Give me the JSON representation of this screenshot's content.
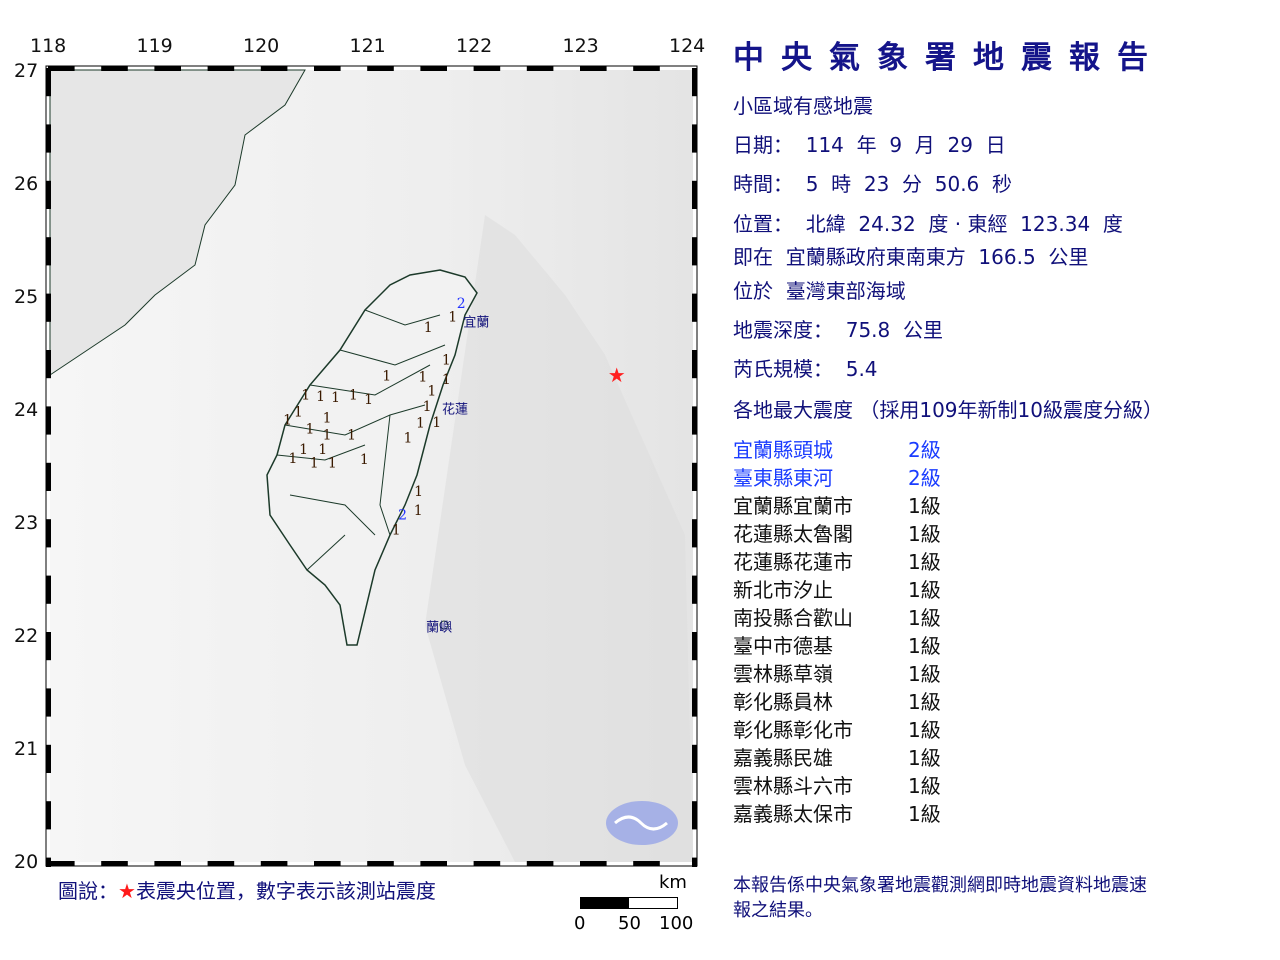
{
  "header": {
    "title": "中央氣象署地震報告"
  },
  "report": {
    "type": "小區域有感地震",
    "date": "日期：  114  年  9  月  29  日",
    "time": "時間：  5  時  23  分  50.6  秒",
    "location": "位置：  北緯  24.32  度 · 東經  123.34  度",
    "relative": "即在  宜蘭縣政府東南東方  166.5  公里",
    "region": "位於  臺灣東部海域",
    "depth": "地震深度：  75.8  公里",
    "magnitude": "芮氏規模：  5.4",
    "intensity_heading": "各地最大震度 （採用109年新制10級震度分級）"
  },
  "stations": [
    {
      "name": "宜蘭縣頭城",
      "level": "2級"
    },
    {
      "name": "臺東縣東河",
      "level": "2級"
    },
    {
      "name": "宜蘭縣宜蘭市",
      "level": "1級"
    },
    {
      "name": "花蓮縣太魯閣",
      "level": "1級"
    },
    {
      "name": "花蓮縣花蓮市",
      "level": "1級"
    },
    {
      "name": "新北市汐止",
      "level": "1級"
    },
    {
      "name": "南投縣合歡山",
      "level": "1級"
    },
    {
      "name": "臺中市德基",
      "level": "1級"
    },
    {
      "name": "雲林縣草嶺",
      "level": "1級"
    },
    {
      "name": "彰化縣員林",
      "level": "1級"
    },
    {
      "name": "彰化縣彰化市",
      "level": "1級"
    },
    {
      "name": "嘉義縣民雄",
      "level": "1級"
    },
    {
      "name": "雲林縣斗六市",
      "level": "1級"
    },
    {
      "name": "嘉義縣太保市",
      "level": "1級"
    }
  ],
  "map": {
    "lon_ticks": [
      "118",
      "119",
      "120",
      "121",
      "122",
      "123",
      "124"
    ],
    "lat_ticks": [
      "27",
      "26",
      "25",
      "24",
      "23",
      "22",
      "21",
      "20"
    ],
    "epicenter": {
      "lon": 123.34,
      "lat": 24.32,
      "color": "#ff2020"
    },
    "place_labels": [
      {
        "text": "宜蘭",
        "lon": 121.9,
        "lat": 24.75
      },
      {
        "text": "花蓮",
        "lon": 121.7,
        "lat": 23.98
      },
      {
        "text": "蘭嶼",
        "lon": 121.55,
        "lat": 22.05
      }
    ],
    "intensity_marks": [
      {
        "v": "2",
        "lon": 121.88,
        "lat": 24.91
      },
      {
        "v": "2",
        "lon": 121.33,
        "lat": 23.04
      },
      {
        "v": "1",
        "lon": 121.8,
        "lat": 24.79
      },
      {
        "v": "1",
        "lon": 121.57,
        "lat": 24.7
      },
      {
        "v": "1",
        "lon": 121.74,
        "lat": 24.41
      },
      {
        "v": "1",
        "lon": 121.74,
        "lat": 24.3
      },
      {
        "v": "1",
        "lon": 121.18,
        "lat": 24.27
      },
      {
        "v": "1",
        "lon": 121.52,
        "lat": 24.26
      },
      {
        "v": "1",
        "lon": 121.66,
        "lat": 24.2
      },
      {
        "v": "1",
        "lon": 121.01,
        "lat": 24.06
      },
      {
        "v": "1",
        "lon": 121.56,
        "lat": 24.0
      },
      {
        "v": "1",
        "lon": 121.65,
        "lat": 23.92
      },
      {
        "v": "1",
        "lon": 121.38,
        "lat": 23.72
      },
      {
        "v": "1",
        "lon": 121.61,
        "lat": 23.98
      },
      {
        "v": "1",
        "lon": 120.42,
        "lat": 24.1
      },
      {
        "v": "1",
        "lon": 120.56,
        "lat": 24.09
      },
      {
        "v": "1",
        "lon": 120.7,
        "lat": 24.08
      },
      {
        "v": "1",
        "lon": 120.98,
        "lat": 24.1
      },
      {
        "v": "1",
        "lon": 120.35,
        "lat": 23.95
      },
      {
        "v": "1",
        "lon": 120.25,
        "lat": 23.88
      },
      {
        "v": "1",
        "lon": 120.62,
        "lat": 23.9
      },
      {
        "v": "1",
        "lon": 120.46,
        "lat": 23.8
      },
      {
        "v": "1",
        "lon": 120.62,
        "lat": 23.75
      },
      {
        "v": "1",
        "lon": 120.85,
        "lat": 23.75
      },
      {
        "v": "1",
        "lon": 120.4,
        "lat": 23.62
      },
      {
        "v": "1",
        "lon": 120.58,
        "lat": 23.62
      },
      {
        "v": "1",
        "lon": 120.67,
        "lat": 23.56
      },
      {
        "v": "1",
        "lon": 120.3,
        "lat": 23.54
      },
      {
        "v": "1",
        "lon": 120.5,
        "lat": 23.5
      },
      {
        "v": "1",
        "lon": 120.97,
        "lat": 23.53
      },
      {
        "v": "1",
        "lon": 121.48,
        "lat": 23.25
      },
      {
        "v": "1",
        "lon": 121.42,
        "lat": 23.08
      },
      {
        "v": "1",
        "lon": 121.27,
        "lat": 22.97
      }
    ]
  },
  "legend": {
    "prefix": "圖說：",
    "star": "★",
    "text": "表震央位置，數字表示該測站震度",
    "scale_unit": "km",
    "scale_labels": [
      "0",
      "50",
      "100"
    ]
  },
  "footer_note": "本報告係中央氣象署地震觀測網即時地震資料地震速報之結果。"
}
